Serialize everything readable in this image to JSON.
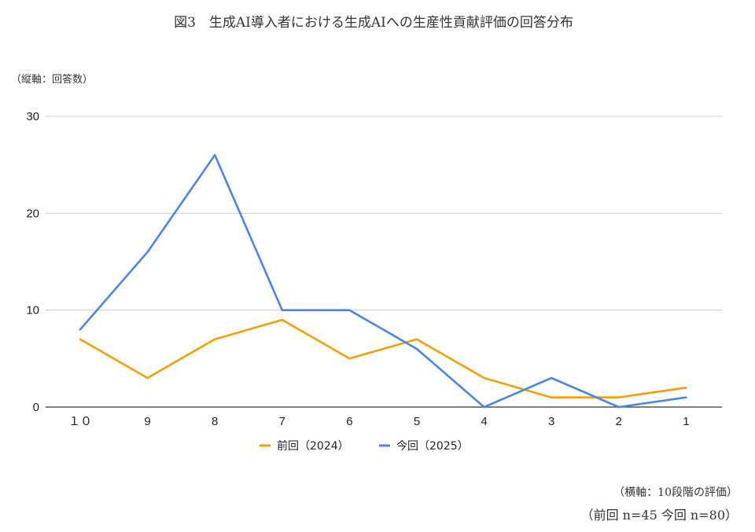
{
  "chart_data": {
    "type": "line",
    "title": "図3　生成AI導入者における生成AIへの生産性貢献評価の回答分布",
    "ylabel": "（縦軸：回答数）",
    "xlabel": "（横軸：10段階の評価）",
    "categories": [
      "１０",
      "9",
      "8",
      "7",
      "6",
      "5",
      "4",
      "3",
      "2",
      "1"
    ],
    "ylim": [
      0,
      30
    ],
    "yticks": [
      "0",
      "10",
      "20",
      "30"
    ],
    "grid": true,
    "legend_position": "bottom",
    "series": [
      {
        "name": "前回（2024）",
        "color": "#f59e0b",
        "values": [
          7,
          3,
          7,
          9,
          5,
          7,
          3,
          1,
          1,
          2
        ]
      },
      {
        "name": "今回（2025）",
        "color": "#4a86e8",
        "values": [
          8,
          16,
          26,
          10,
          10,
          6,
          0,
          3,
          0,
          1
        ]
      }
    ],
    "note": "（前回 n=45 今回 n=80）"
  }
}
